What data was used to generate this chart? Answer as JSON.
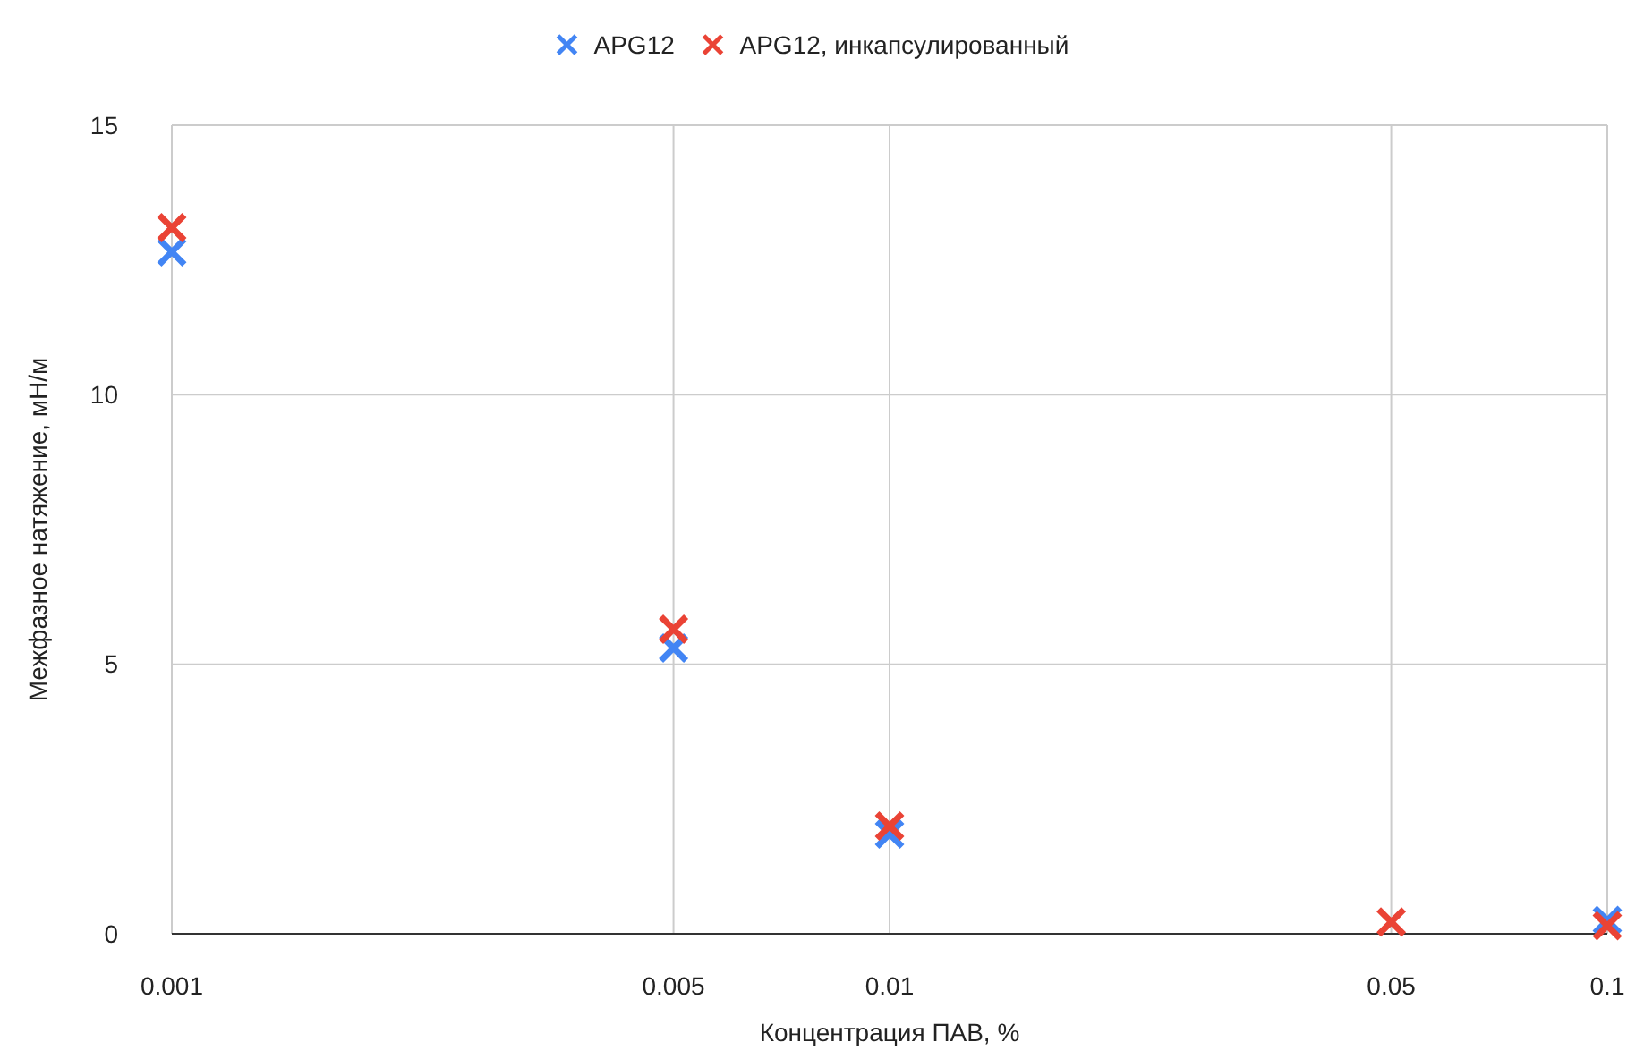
{
  "chart_data": {
    "type": "scatter",
    "xlabel": "Концентрация ПАВ, %",
    "ylabel": "Межфазное натяжение, мН/м",
    "log": "x",
    "x": [
      0.001,
      0.005,
      0.01,
      0.05,
      0.1
    ],
    "xlim": [
      0.001,
      0.1
    ],
    "xticks": [
      0.001,
      0.005,
      0.01,
      0.05,
      0.1
    ],
    "ylim": [
      0,
      15
    ],
    "yticks": [
      0,
      5,
      10,
      15
    ],
    "grid": true,
    "legend": "top",
    "marker": "cross",
    "series": [
      {
        "name": "APG12",
        "color": "#4285f4",
        "values": [
          12.65,
          5.3,
          1.85,
          null,
          0.25
        ]
      },
      {
        "name": "APG12, инкапсулированный",
        "color": "#ea4335",
        "values": [
          13.1,
          5.65,
          2.0,
          0.22,
          0.15
        ]
      }
    ]
  }
}
